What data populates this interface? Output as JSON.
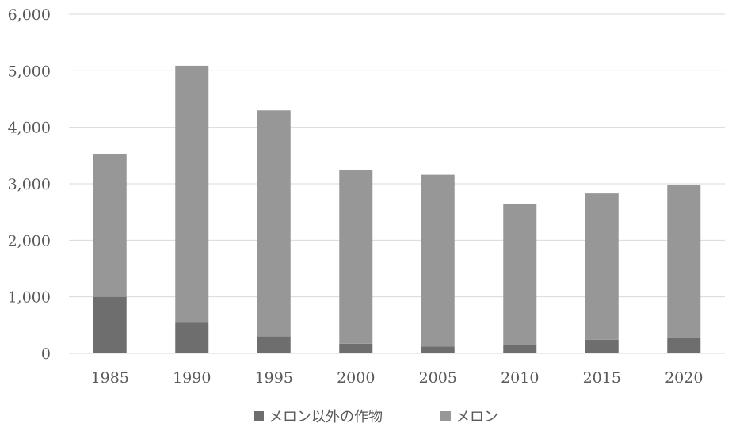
{
  "chart_data": {
    "type": "bar",
    "stacked": true,
    "title": "",
    "xlabel": "",
    "ylabel": "",
    "categories": [
      "1985",
      "1990",
      "1995",
      "2000",
      "2005",
      "2010",
      "2015",
      "2020"
    ],
    "series": [
      {
        "name": "メロン以外の作物",
        "color": "#6e6e6e",
        "values": [
          1000,
          540,
          300,
          170,
          120,
          150,
          240,
          285
        ]
      },
      {
        "name": "メロン",
        "color": "#979797",
        "values": [
          2520,
          4550,
          4000,
          3080,
          3040,
          2500,
          2590,
          2700
        ]
      }
    ],
    "ylim": [
      0,
      6000
    ],
    "yticks": [
      "0",
      "1,000",
      "2,000",
      "3,000",
      "4,000",
      "5,000",
      "6,000"
    ],
    "grid": true,
    "legend_position": "bottom"
  }
}
